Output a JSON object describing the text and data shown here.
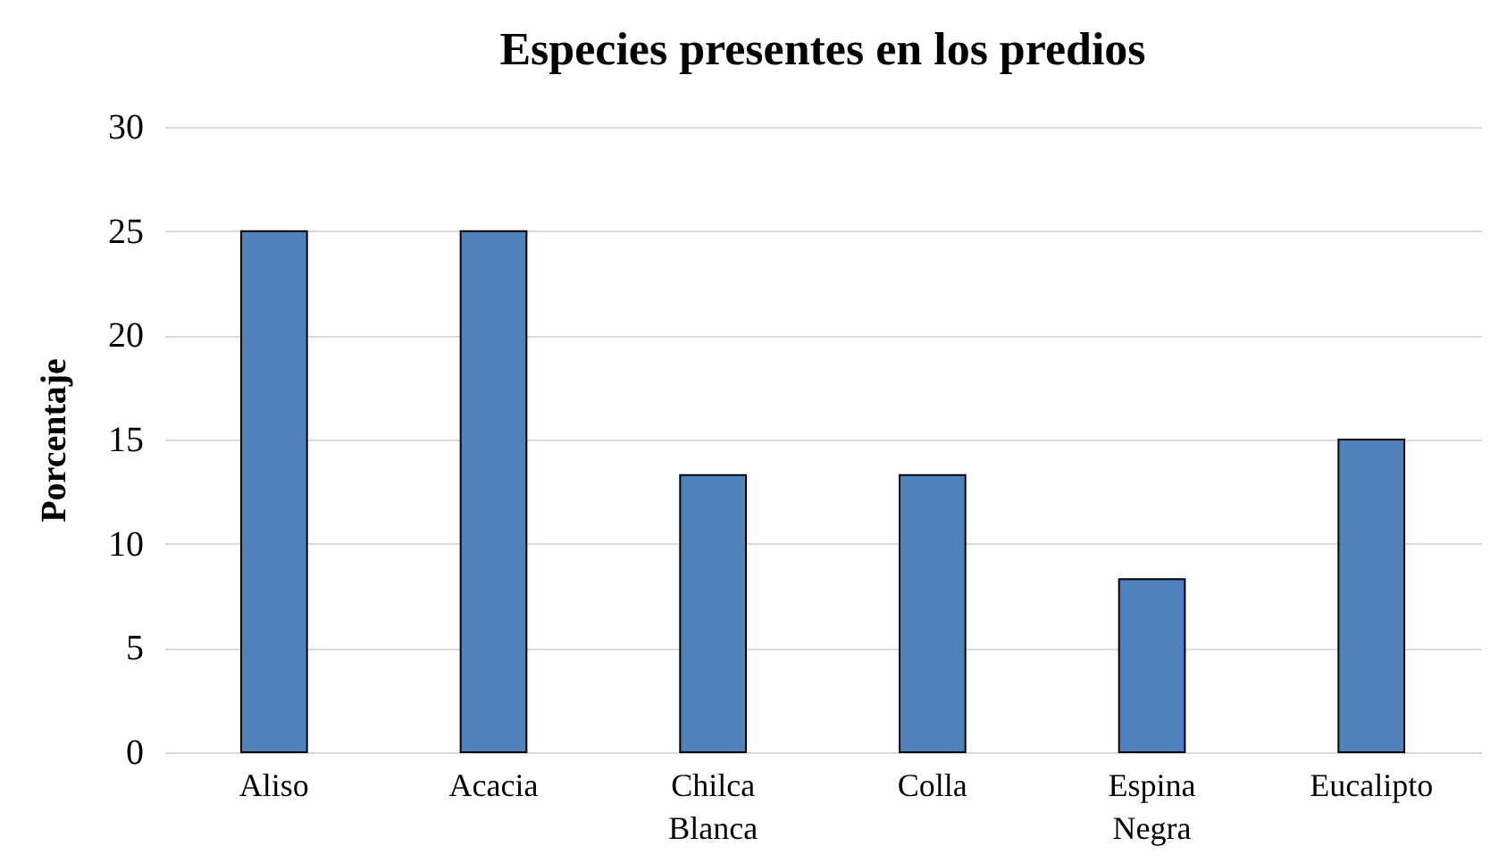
{
  "chart_data": {
    "type": "bar",
    "title": "Especies presentes en los predios",
    "ylabel": "Porcentaje",
    "categories": [
      "Aliso",
      "Acacia",
      "Chilca Blanca",
      "Colla",
      "Espina Negra",
      "Eucalipto"
    ],
    "values": [
      25,
      25,
      13.3,
      13.3,
      8.3,
      15
    ],
    "color": "#4f81bd",
    "ylim": [
      0,
      30
    ],
    "yticks": [
      0,
      5,
      10,
      15,
      20,
      25,
      30
    ],
    "grid": "y"
  }
}
